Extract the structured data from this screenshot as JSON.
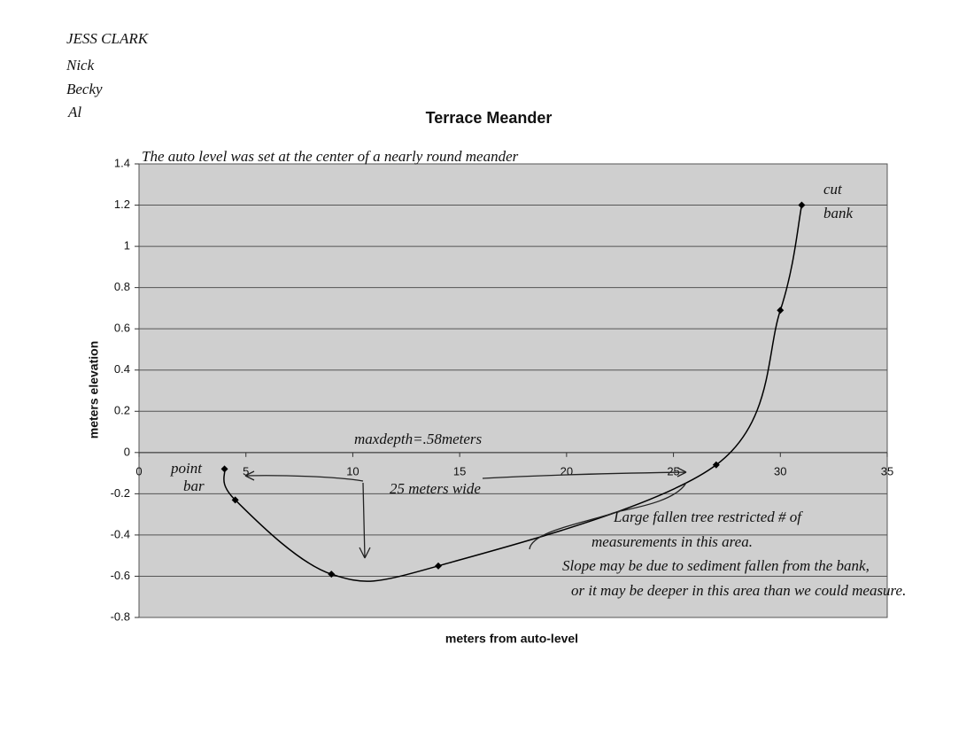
{
  "authors": [
    "JESS CLARK",
    "Nick",
    "Becky",
    "Al"
  ],
  "chart_data": {
    "type": "line",
    "title": "Terrace Meander",
    "x_label": "meters from auto-level",
    "y_label": "meters elevation",
    "x": [
      4,
      4.5,
      9,
      14,
      27,
      30,
      31
    ],
    "values": [
      -0.08,
      -0.23,
      -0.59,
      -0.55,
      -0.06,
      0.69,
      1.2
    ],
    "color": "#000000",
    "xlim": [
      0,
      35
    ],
    "xticks": [
      0,
      5,
      10,
      15,
      20,
      25,
      30,
      35
    ],
    "ylim": [
      -0.8,
      1.4
    ],
    "yticks": [
      1.4,
      1.2,
      1,
      0.8,
      0.6,
      0.4,
      0.2,
      0,
      -0.2,
      -0.4,
      -0.6,
      -0.8
    ],
    "grid": true,
    "annotations": [
      "The auto level was set at the center of a nearly round meander",
      "cut",
      "bank",
      "point",
      "bar",
      "maxdepth=.58meters",
      "25 meters wide",
      "Large fallen tree restricted # of",
      "measurements in this area.",
      "Slope may be due to sediment fallen from the bank,",
      "or it may be deeper in this area than we could measure."
    ]
  }
}
